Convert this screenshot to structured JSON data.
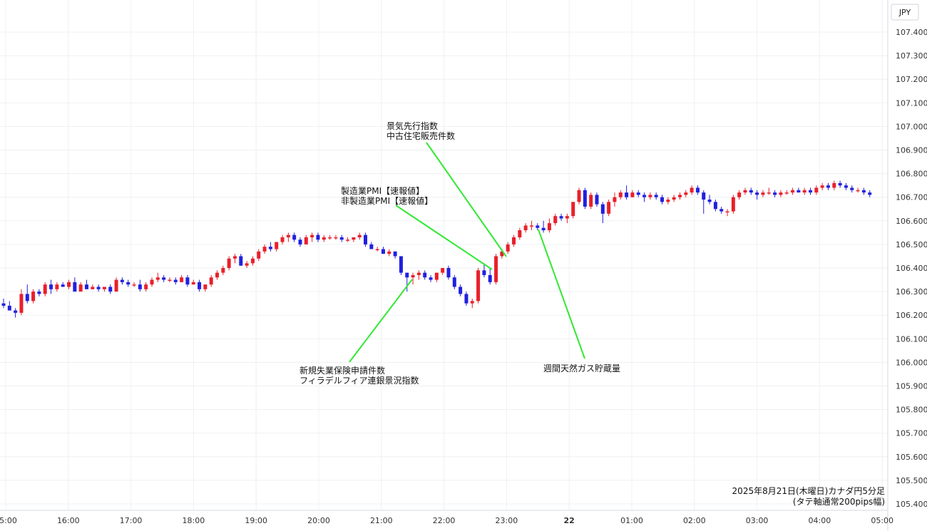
{
  "chart_data": {
    "type": "candlestick",
    "currency_label": "JPY",
    "caption_line1": "2025年8月21日(木曜日)カナダ円5分足",
    "caption_line2": "(タテ軸通常200pips幅)",
    "y_ticks": [
      107.4,
      107.3,
      107.2,
      107.1,
      107.0,
      106.9,
      106.8,
      106.7,
      106.6,
      106.5,
      106.4,
      106.3,
      106.2,
      106.1,
      106.0,
      105.9,
      105.8,
      105.7,
      105.6,
      105.5,
      105.4
    ],
    "ylim": [
      105.38,
      107.44
    ],
    "x_ticks": [
      {
        "label": "15:00",
        "t": 15.0
      },
      {
        "label": "16:00",
        "t": 16.0
      },
      {
        "label": "17:00",
        "t": 17.0
      },
      {
        "label": "18:00",
        "t": 18.0
      },
      {
        "label": "19:00",
        "t": 19.0
      },
      {
        "label": "20:00",
        "t": 20.0
      },
      {
        "label": "21:00",
        "t": 21.0
      },
      {
        "label": "22:00",
        "t": 22.0
      },
      {
        "label": "23:00",
        "t": 23.0
      },
      {
        "label": "22",
        "t": 24.0,
        "bold": true
      },
      {
        "label": "01:00",
        "t": 25.0
      },
      {
        "label": "02:00",
        "t": 26.0
      },
      {
        "label": "03:00",
        "t": 27.0
      },
      {
        "label": "04:00",
        "t": 28.0
      },
      {
        "label": "05:00",
        "t": 29.0
      }
    ],
    "colors": {
      "up": "#e8202a",
      "down": "#2020e0",
      "leader": "#33e833"
    },
    "candles": [
      [
        106.25,
        106.27,
        106.23,
        106.24
      ],
      [
        106.24,
        106.26,
        106.22,
        106.22
      ],
      [
        106.22,
        106.23,
        106.19,
        106.21
      ],
      [
        106.21,
        106.31,
        106.2,
        106.29
      ],
      [
        106.29,
        106.33,
        106.25,
        106.26
      ],
      [
        106.26,
        106.31,
        106.25,
        106.3
      ],
      [
        106.3,
        106.31,
        106.28,
        106.29
      ],
      [
        106.29,
        106.34,
        106.28,
        106.33
      ],
      [
        106.33,
        106.35,
        106.29,
        106.31
      ],
      [
        106.31,
        106.34,
        106.3,
        106.33
      ],
      [
        106.33,
        106.34,
        106.32,
        106.32
      ],
      [
        106.32,
        106.35,
        106.31,
        106.34
      ],
      [
        106.34,
        106.36,
        106.3,
        106.3
      ],
      [
        106.3,
        106.34,
        106.3,
        106.33
      ],
      [
        106.33,
        106.35,
        106.31,
        106.31
      ],
      [
        106.31,
        106.33,
        106.31,
        106.32
      ],
      [
        106.32,
        106.33,
        106.3,
        106.31
      ],
      [
        106.31,
        106.32,
        106.3,
        106.32
      ],
      [
        106.32,
        106.33,
        106.29,
        106.3
      ],
      [
        106.3,
        106.36,
        106.3,
        106.35
      ],
      [
        106.35,
        106.36,
        106.33,
        106.34
      ],
      [
        106.34,
        106.35,
        106.32,
        106.33
      ],
      [
        106.33,
        106.34,
        106.32,
        106.33
      ],
      [
        106.33,
        106.35,
        106.3,
        106.31
      ],
      [
        106.31,
        106.34,
        106.3,
        106.33
      ],
      [
        106.33,
        106.36,
        106.32,
        106.35
      ],
      [
        106.35,
        106.38,
        106.34,
        106.36
      ],
      [
        106.36,
        106.37,
        106.34,
        106.35
      ],
      [
        106.35,
        106.36,
        106.34,
        106.35
      ],
      [
        106.35,
        106.36,
        106.33,
        106.34
      ],
      [
        106.34,
        106.37,
        106.34,
        106.36
      ],
      [
        106.36,
        106.37,
        106.32,
        106.33
      ],
      [
        106.33,
        106.35,
        106.33,
        106.34
      ],
      [
        106.34,
        106.35,
        106.3,
        106.31
      ],
      [
        106.31,
        106.33,
        106.3,
        106.33
      ],
      [
        106.33,
        106.37,
        106.32,
        106.36
      ],
      [
        106.36,
        106.39,
        106.35,
        106.38
      ],
      [
        106.38,
        106.41,
        106.37,
        106.4
      ],
      [
        106.4,
        106.45,
        106.39,
        106.44
      ],
      [
        106.44,
        106.46,
        106.42,
        106.45
      ],
      [
        106.45,
        106.46,
        106.41,
        106.41
      ],
      [
        106.41,
        106.43,
        106.4,
        106.42
      ],
      [
        106.42,
        106.45,
        106.41,
        106.44
      ],
      [
        106.44,
        106.48,
        106.43,
        106.47
      ],
      [
        106.47,
        106.5,
        106.46,
        106.49
      ],
      [
        106.49,
        106.51,
        106.47,
        106.48
      ],
      [
        106.48,
        106.51,
        106.47,
        106.51
      ],
      [
        106.51,
        106.54,
        106.5,
        106.53
      ],
      [
        106.53,
        106.55,
        106.51,
        106.54
      ],
      [
        106.54,
        106.55,
        106.51,
        106.52
      ],
      [
        106.52,
        106.53,
        106.49,
        106.5
      ],
      [
        106.5,
        106.54,
        106.5,
        106.53
      ],
      [
        106.53,
        106.55,
        106.51,
        106.54
      ],
      [
        106.54,
        106.55,
        106.51,
        106.52
      ],
      [
        106.52,
        106.54,
        106.51,
        106.53
      ],
      [
        106.53,
        106.54,
        106.52,
        106.53
      ],
      [
        106.53,
        106.54,
        106.52,
        106.53
      ],
      [
        106.53,
        106.54,
        106.51,
        106.52
      ],
      [
        106.52,
        106.53,
        106.51,
        106.52
      ],
      [
        106.52,
        106.53,
        106.51,
        106.53
      ],
      [
        106.53,
        106.55,
        106.52,
        106.54
      ],
      [
        106.54,
        106.55,
        106.49,
        106.5
      ],
      [
        106.5,
        106.51,
        106.48,
        106.48
      ],
      [
        106.48,
        106.49,
        106.47,
        106.48
      ],
      [
        106.48,
        106.49,
        106.46,
        106.46
      ],
      [
        106.46,
        106.48,
        106.45,
        106.47
      ],
      [
        106.47,
        106.47,
        106.44,
        106.45
      ],
      [
        106.45,
        106.45,
        106.37,
        106.38
      ],
      [
        106.38,
        106.38,
        106.3,
        106.36
      ],
      [
        106.36,
        106.38,
        106.33,
        106.37
      ],
      [
        106.37,
        106.39,
        106.35,
        106.38
      ],
      [
        106.38,
        106.39,
        106.35,
        106.36
      ],
      [
        106.36,
        106.37,
        106.34,
        106.35
      ],
      [
        106.35,
        106.38,
        106.34,
        106.38
      ],
      [
        106.38,
        106.4,
        106.37,
        106.4
      ],
      [
        106.4,
        106.41,
        106.35,
        106.36
      ],
      [
        106.36,
        106.37,
        106.31,
        106.32
      ],
      [
        106.32,
        106.33,
        106.28,
        106.29
      ],
      [
        106.29,
        106.3,
        106.24,
        106.25
      ],
      [
        106.25,
        106.27,
        106.23,
        106.26
      ],
      [
        106.26,
        106.4,
        106.25,
        106.39
      ],
      [
        106.39,
        106.42,
        106.36,
        106.37
      ],
      [
        106.37,
        106.4,
        106.33,
        106.34
      ],
      [
        106.34,
        106.46,
        106.33,
        106.45
      ],
      [
        106.45,
        106.48,
        106.44,
        106.47
      ],
      [
        106.47,
        106.51,
        106.46,
        106.5
      ],
      [
        106.5,
        106.54,
        106.49,
        106.53
      ],
      [
        106.53,
        106.57,
        106.52,
        106.56
      ],
      [
        106.56,
        106.59,
        106.55,
        106.58
      ],
      [
        106.58,
        106.6,
        106.56,
        106.58
      ],
      [
        106.58,
        106.59,
        106.56,
        106.57
      ],
      [
        106.57,
        106.6,
        106.55,
        106.56
      ],
      [
        106.56,
        106.61,
        106.55,
        106.59
      ],
      [
        106.59,
        106.63,
        106.58,
        106.62
      ],
      [
        106.62,
        106.63,
        106.6,
        106.61
      ],
      [
        106.61,
        106.63,
        106.59,
        106.62
      ],
      [
        106.62,
        106.68,
        106.61,
        106.68
      ],
      [
        106.68,
        106.74,
        106.67,
        106.73
      ],
      [
        106.73,
        106.74,
        106.65,
        106.66
      ],
      [
        106.66,
        106.72,
        106.65,
        106.71
      ],
      [
        106.71,
        106.72,
        106.66,
        106.67
      ],
      [
        106.67,
        106.68,
        106.59,
        106.63
      ],
      [
        106.63,
        106.69,
        106.62,
        106.68
      ],
      [
        106.68,
        106.72,
        106.66,
        106.7
      ],
      [
        106.7,
        106.73,
        106.69,
        106.72
      ],
      [
        106.72,
        106.75,
        106.69,
        106.7
      ],
      [
        106.7,
        106.73,
        106.7,
        106.72
      ],
      [
        106.72,
        106.73,
        106.7,
        106.71
      ],
      [
        106.71,
        106.72,
        106.68,
        106.7
      ],
      [
        106.7,
        106.72,
        106.69,
        106.71
      ],
      [
        106.71,
        106.72,
        106.69,
        106.7
      ],
      [
        106.7,
        106.71,
        106.67,
        106.68
      ],
      [
        106.68,
        106.7,
        106.67,
        106.69
      ],
      [
        106.69,
        106.71,
        106.68,
        106.7
      ],
      [
        106.7,
        106.72,
        106.69,
        106.71
      ],
      [
        106.71,
        106.73,
        106.7,
        106.72
      ],
      [
        106.72,
        106.75,
        106.71,
        106.74
      ],
      [
        106.74,
        106.75,
        106.71,
        106.72
      ],
      [
        106.72,
        106.73,
        106.63,
        106.69
      ],
      [
        106.69,
        106.71,
        106.67,
        106.68
      ],
      [
        106.68,
        106.69,
        106.64,
        106.65
      ],
      [
        106.65,
        106.66,
        106.63,
        106.64
      ],
      [
        106.64,
        106.65,
        106.62,
        106.64
      ],
      [
        106.64,
        106.71,
        106.63,
        106.7
      ],
      [
        106.7,
        106.73,
        106.69,
        106.72
      ],
      [
        106.72,
        106.74,
        106.71,
        106.73
      ],
      [
        106.73,
        106.74,
        106.71,
        106.72
      ],
      [
        106.72,
        106.73,
        106.69,
        106.71
      ],
      [
        106.71,
        106.73,
        106.7,
        106.72
      ],
      [
        106.72,
        106.74,
        106.71,
        106.72
      ],
      [
        106.72,
        106.73,
        106.7,
        106.71
      ],
      [
        106.71,
        106.73,
        106.7,
        106.72
      ],
      [
        106.72,
        106.73,
        106.71,
        106.72
      ],
      [
        106.72,
        106.74,
        106.71,
        106.73
      ],
      [
        106.73,
        106.74,
        106.72,
        106.72
      ],
      [
        106.72,
        106.74,
        106.71,
        106.73
      ],
      [
        106.73,
        106.74,
        106.71,
        106.72
      ],
      [
        106.72,
        106.75,
        106.71,
        106.74
      ],
      [
        106.74,
        106.76,
        106.73,
        106.75
      ],
      [
        106.75,
        106.76,
        106.73,
        106.74
      ],
      [
        106.74,
        106.77,
        106.73,
        106.76
      ],
      [
        106.76,
        106.77,
        106.74,
        106.75
      ],
      [
        106.75,
        106.76,
        106.73,
        106.74
      ],
      [
        106.74,
        106.75,
        106.72,
        106.73
      ],
      [
        106.73,
        106.74,
        106.72,
        106.73
      ],
      [
        106.73,
        106.74,
        106.71,
        106.72
      ],
      [
        106.72,
        106.73,
        106.7,
        106.71
      ]
    ],
    "annotations": [
      {
        "lines": [
          "景気先行指数",
          "中古住宅販売件数"
        ],
        "text_x": 542,
        "text_y": 181,
        "leader": [
          [
            598,
            200
          ],
          [
            710,
            360
          ]
        ]
      },
      {
        "lines": [
          "製造業PMI【速報値】",
          "非製造業PMI【速報値】"
        ],
        "text_x": 478,
        "text_y": 272,
        "leader": [
          [
            555,
            288
          ],
          [
            690,
            378
          ]
        ]
      },
      {
        "lines": [
          "新規失業保険申請件数",
          "フィラデルフィア連銀景況指数"
        ],
        "text_x": 420,
        "text_y": 524,
        "leader": [
          [
            490,
            508
          ],
          [
            578,
            392
          ]
        ]
      },
      {
        "lines": [
          "週間天然ガス貯蔵量"
        ],
        "text_x": 762,
        "text_y": 521,
        "leader": [
          [
            820,
            503
          ],
          [
            755,
            322
          ]
        ]
      }
    ]
  }
}
